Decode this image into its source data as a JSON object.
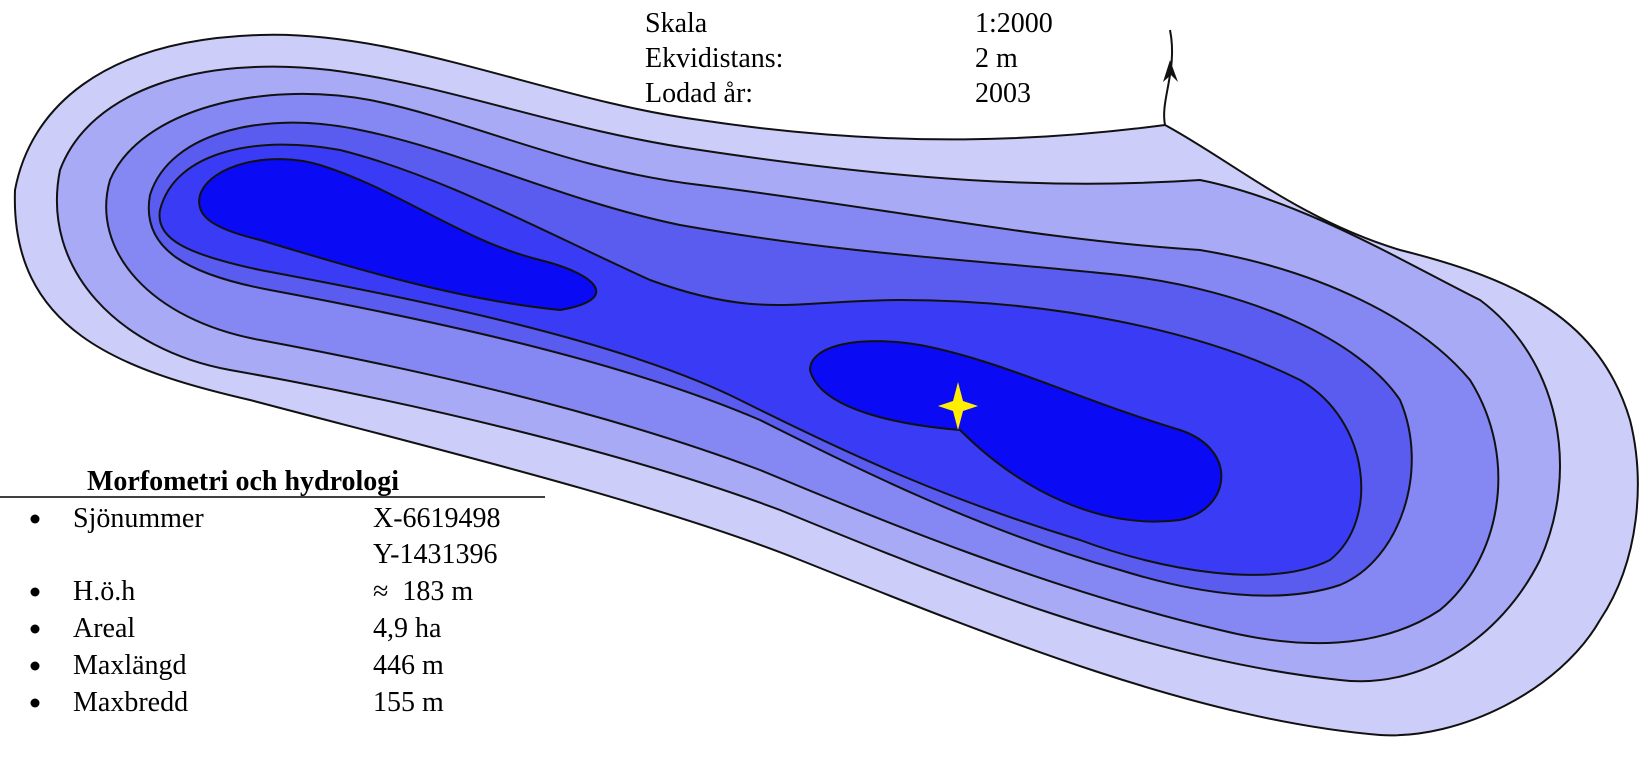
{
  "scale_info": {
    "rows": [
      [
        "Skala",
        "1:2000"
      ],
      [
        "Ekvidistans:",
        "2 m"
      ],
      [
        "Lodad år:",
        "2003"
      ]
    ]
  },
  "morphometry": {
    "title": "Morfometri och hydrologi",
    "items": [
      {
        "label": "Sjönummer",
        "values": [
          "X-6619498",
          "Y-1431396"
        ]
      },
      {
        "label": "H.ö.h",
        "values": [
          "≈  183 m"
        ]
      },
      {
        "label": "Areal",
        "values": [
          "4,9 ha"
        ]
      },
      {
        "label": "Maxlängd",
        "values": [
          "446 m"
        ]
      },
      {
        "label": "Maxbredd",
        "values": [
          "155 m"
        ]
      }
    ]
  }
}
